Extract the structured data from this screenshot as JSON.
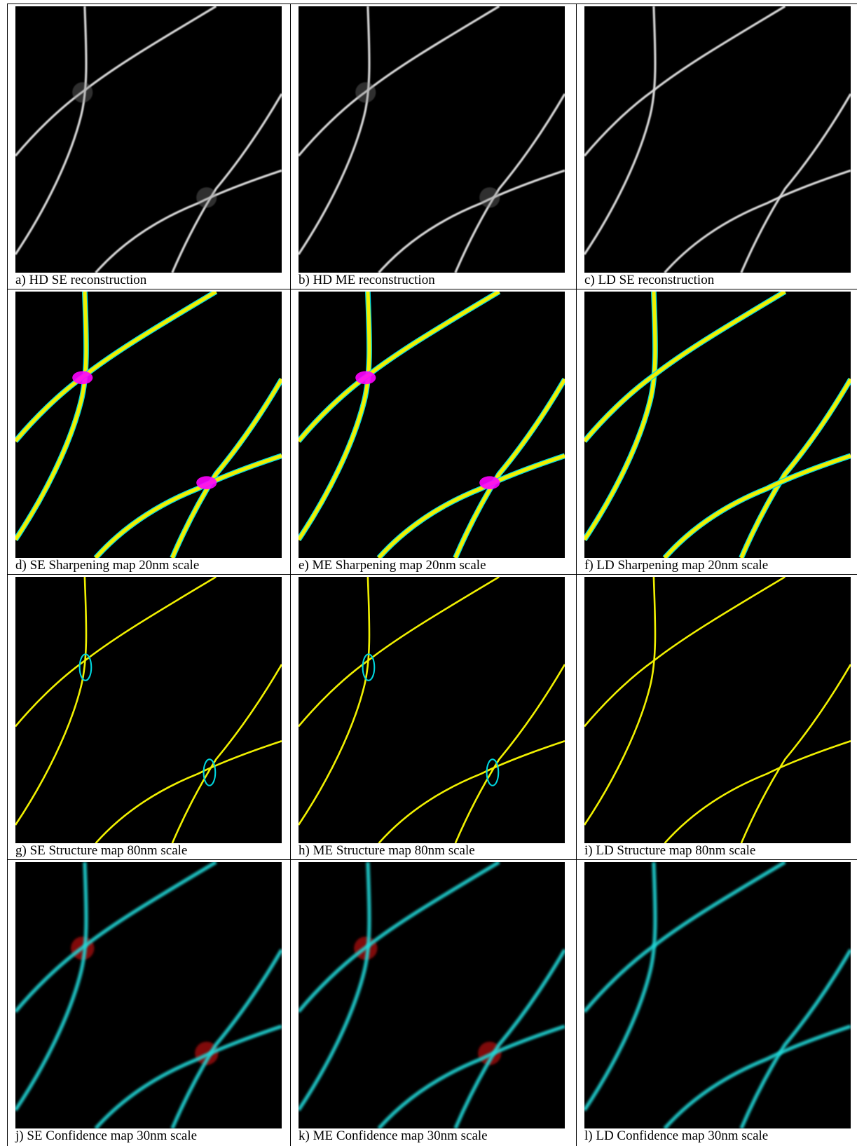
{
  "figure": {
    "panels": [
      {
        "caption": "a) HD SE reconstruction"
      },
      {
        "caption": "b) HD ME reconstruction"
      },
      {
        "caption": "c) LD SE reconstruction"
      },
      {
        "caption": "d) SE Sharpening map 20nm scale"
      },
      {
        "caption": "e) ME Sharpening map 20nm scale"
      },
      {
        "caption": "f) LD Sharpening map 20nm scale"
      },
      {
        "caption": "g) SE Structure map 80nm scale"
      },
      {
        "caption": "h) ME Structure map 80nm scale"
      },
      {
        "caption": "i) LD Structure map 80nm scale"
      },
      {
        "caption": "j) SE Confidence map 30nm scale"
      },
      {
        "caption": "k) ME Confidence map 30nm scale"
      },
      {
        "caption": "l) LD Confidence map 30nm scale"
      }
    ]
  }
}
